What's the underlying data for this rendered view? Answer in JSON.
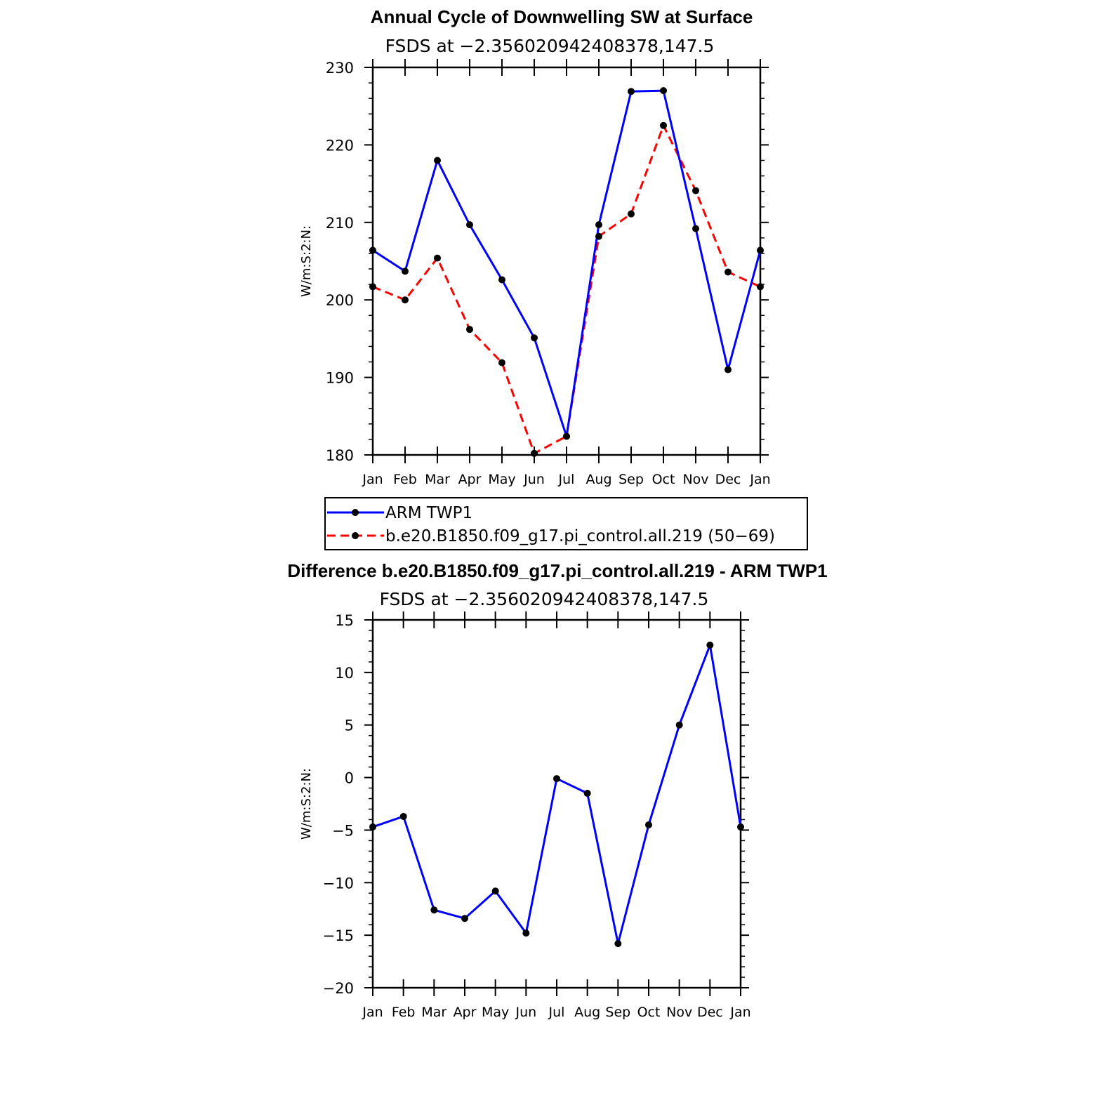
{
  "chart_data": [
    {
      "type": "line",
      "title": "Annual Cycle of Downwelling SW at Surface",
      "subtitle": "FSDS at −2.356020942408378,147.5",
      "ylabel": "W/m:S:2:N:",
      "xlabel": "",
      "ylim": [
        180,
        230
      ],
      "yticks": [
        "180",
        "190",
        "200",
        "210",
        "220",
        "230"
      ],
      "categories": [
        "Jan",
        "Feb",
        "Mar",
        "Apr",
        "May",
        "Jun",
        "Jul",
        "Aug",
        "Sep",
        "Oct",
        "Nov",
        "Dec",
        "Jan"
      ],
      "series": [
        {
          "name": "ARM TWP1",
          "color": "#0000ff",
          "dash": "solid",
          "values": [
            206.4,
            203.7,
            218.0,
            209.7,
            202.6,
            195.1,
            182.4,
            209.7,
            226.9,
            227.0,
            209.2,
            191.0,
            206.4
          ]
        },
        {
          "name": "b.e20.B1850.f09_g17.pi_control.all.219 (50−69)",
          "color": "#ff0000",
          "dash": "dashed",
          "values": [
            201.7,
            200.0,
            205.4,
            196.2,
            191.9,
            180.2,
            182.4,
            208.2,
            211.1,
            222.5,
            214.1,
            203.6,
            201.7
          ]
        }
      ],
      "legend_position": "below"
    },
    {
      "type": "line",
      "title": "Difference b.e20.B1850.f09_g17.pi_control.all.219 - ARM TWP1",
      "subtitle": "FSDS at −2.356020942408378,147.5",
      "ylabel": "W/m:S:2:N:",
      "xlabel": "",
      "ylim": [
        -20,
        15
      ],
      "yticks": [
        "−20",
        "−15",
        "−10",
        "−5",
        "0",
        "5",
        "10",
        "15"
      ],
      "categories": [
        "Jan",
        "Feb",
        "Mar",
        "Apr",
        "May",
        "Jun",
        "Jul",
        "Aug",
        "Sep",
        "Oct",
        "Nov",
        "Dec",
        "Jan"
      ],
      "series": [
        {
          "color": "#0000ff",
          "dash": "solid",
          "values": [
            -4.7,
            -3.7,
            -12.6,
            -13.4,
            -10.8,
            -14.8,
            -0.1,
            -1.5,
            -15.8,
            -4.5,
            5.0,
            12.6,
            -4.7
          ]
        }
      ]
    }
  ]
}
